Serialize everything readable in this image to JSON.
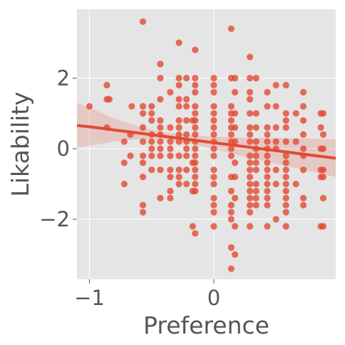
{
  "chart_data": {
    "type": "scatter",
    "title": "",
    "xlabel": "Preference",
    "ylabel": "Likability",
    "xlim": [
      -1.1,
      0.98
    ],
    "ylim": [
      -3.7,
      3.95
    ],
    "x_ticks": [
      -1,
      0
    ],
    "x_tick_labels": [
      "−1",
      "0"
    ],
    "y_ticks": [
      -2,
      0,
      2
    ],
    "y_tick_labels": [
      "−2",
      "0",
      "2"
    ],
    "grid": true,
    "style": "ggplot",
    "colors": {
      "background": "#e5e5e5",
      "grid": "#ffffff",
      "points": "#e24a33",
      "regression_line": "#e24a33",
      "confidence_band": "#e24a33",
      "tick_and_label_text": "#555555"
    },
    "points": [
      {
        "x": -1.0,
        "y": 1.2
      },
      {
        "x": -0.86,
        "y": 1.8
      },
      {
        "x": -0.86,
        "y": 1.4
      },
      {
        "x": -0.84,
        "y": 1.4
      },
      {
        "x": -0.86,
        "y": 0.6
      },
      {
        "x": -0.72,
        "y": 0.2
      },
      {
        "x": -0.72,
        "y": -0.4
      },
      {
        "x": -0.72,
        "y": -1.0
      },
      {
        "x": -0.67,
        "y": 0.4
      },
      {
        "x": -0.67,
        "y": -0.2
      },
      {
        "x": -0.66,
        "y": 1.2
      },
      {
        "x": -0.57,
        "y": 3.6
      },
      {
        "x": -0.57,
        "y": 1.2
      },
      {
        "x": -0.57,
        "y": 1.0
      },
      {
        "x": -0.57,
        "y": 0.6
      },
      {
        "x": -0.57,
        "y": 0.2
      },
      {
        "x": -0.57,
        "y": -0.2
      },
      {
        "x": -0.57,
        "y": -0.4
      },
      {
        "x": -0.57,
        "y": -0.8
      },
      {
        "x": -0.57,
        "y": -1.6
      },
      {
        "x": -0.57,
        "y": -1.8
      },
      {
        "x": -0.5,
        "y": 1.2
      },
      {
        "x": -0.5,
        "y": 1.0
      },
      {
        "x": -0.5,
        "y": 0.8
      },
      {
        "x": -0.5,
        "y": 0.4
      },
      {
        "x": -0.5,
        "y": 0.2
      },
      {
        "x": -0.5,
        "y": 0.0
      },
      {
        "x": -0.5,
        "y": -0.2
      },
      {
        "x": -0.5,
        "y": -0.6
      },
      {
        "x": -0.43,
        "y": 2.4
      },
      {
        "x": -0.43,
        "y": 2.0
      },
      {
        "x": -0.43,
        "y": 1.4
      },
      {
        "x": -0.43,
        "y": 0.8
      },
      {
        "x": -0.43,
        "y": 0.6
      },
      {
        "x": -0.43,
        "y": 0.4
      },
      {
        "x": -0.43,
        "y": 0.2
      },
      {
        "x": -0.43,
        "y": 0.0
      },
      {
        "x": -0.43,
        "y": -0.2
      },
      {
        "x": -0.43,
        "y": -0.6
      },
      {
        "x": -0.43,
        "y": -1.4
      },
      {
        "x": -0.35,
        "y": 1.6
      },
      {
        "x": -0.35,
        "y": 0.6
      },
      {
        "x": -0.35,
        "y": 0.2
      },
      {
        "x": -0.35,
        "y": 0.0
      },
      {
        "x": -0.35,
        "y": -0.2
      },
      {
        "x": -0.35,
        "y": -0.6
      },
      {
        "x": -0.35,
        "y": -0.8
      },
      {
        "x": -0.35,
        "y": -1.2
      },
      {
        "x": -0.35,
        "y": -1.4
      },
      {
        "x": -0.28,
        "y": 3.0
      },
      {
        "x": -0.28,
        "y": 2.0
      },
      {
        "x": -0.28,
        "y": 1.8
      },
      {
        "x": -0.28,
        "y": 1.4
      },
      {
        "x": -0.28,
        "y": 1.2
      },
      {
        "x": -0.28,
        "y": 0.8
      },
      {
        "x": -0.28,
        "y": 0.6
      },
      {
        "x": -0.28,
        "y": 0.4
      },
      {
        "x": -0.28,
        "y": 0.2
      },
      {
        "x": -0.28,
        "y": -0.2
      },
      {
        "x": -0.28,
        "y": -0.6
      },
      {
        "x": -0.28,
        "y": -0.8
      },
      {
        "x": -0.28,
        "y": -1.0
      },
      {
        "x": -0.22,
        "y": 2.0
      },
      {
        "x": -0.22,
        "y": 1.4
      },
      {
        "x": -0.22,
        "y": 1.2
      },
      {
        "x": -0.22,
        "y": 0.8
      },
      {
        "x": -0.22,
        "y": 0.4
      },
      {
        "x": -0.22,
        "y": 0.2
      },
      {
        "x": -0.22,
        "y": 0.0
      },
      {
        "x": -0.22,
        "y": -0.2
      },
      {
        "x": -0.22,
        "y": -0.6
      },
      {
        "x": -0.22,
        "y": -1.0
      },
      {
        "x": -0.15,
        "y": 2.8
      },
      {
        "x": -0.15,
        "y": 2.0
      },
      {
        "x": -0.15,
        "y": 1.8
      },
      {
        "x": -0.15,
        "y": 1.6
      },
      {
        "x": -0.15,
        "y": 1.2
      },
      {
        "x": -0.15,
        "y": 1.0
      },
      {
        "x": -0.15,
        "y": 0.8
      },
      {
        "x": -0.15,
        "y": 0.6
      },
      {
        "x": -0.15,
        "y": 0.4
      },
      {
        "x": -0.15,
        "y": 0.2
      },
      {
        "x": -0.15,
        "y": 0.0
      },
      {
        "x": -0.15,
        "y": -0.2
      },
      {
        "x": -0.15,
        "y": -0.4
      },
      {
        "x": -0.15,
        "y": -0.6
      },
      {
        "x": -0.15,
        "y": -0.8
      },
      {
        "x": -0.15,
        "y": -1.0
      },
      {
        "x": -0.15,
        "y": -1.2
      },
      {
        "x": -0.15,
        "y": -2.4
      },
      {
        "x": -0.17,
        "y": 0.8
      },
      {
        "x": -0.17,
        "y": -0.4
      },
      {
        "x": -0.17,
        "y": -1.2
      },
      {
        "x": -0.17,
        "y": -2.2
      },
      {
        "x": 0.0,
        "y": 2.0
      },
      {
        "x": 0.0,
        "y": 1.8
      },
      {
        "x": 0.0,
        "y": 1.6
      },
      {
        "x": 0.0,
        "y": 1.2
      },
      {
        "x": 0.0,
        "y": 1.0
      },
      {
        "x": 0.0,
        "y": 0.8
      },
      {
        "x": 0.0,
        "y": 0.6
      },
      {
        "x": 0.0,
        "y": 0.4
      },
      {
        "x": 0.0,
        "y": 0.2
      },
      {
        "x": 0.0,
        "y": 0.0
      },
      {
        "x": 0.0,
        "y": -0.2
      },
      {
        "x": 0.0,
        "y": -0.6
      },
      {
        "x": 0.0,
        "y": -0.8
      },
      {
        "x": 0.0,
        "y": -1.0
      },
      {
        "x": 0.0,
        "y": -1.4
      },
      {
        "x": 0.0,
        "y": -1.6
      },
      {
        "x": 0.0,
        "y": -1.8
      },
      {
        "x": 0.0,
        "y": -2.2
      },
      {
        "x": 0.14,
        "y": 3.4
      },
      {
        "x": 0.14,
        "y": 2.0
      },
      {
        "x": 0.14,
        "y": 1.2
      },
      {
        "x": 0.14,
        "y": 1.0
      },
      {
        "x": 0.14,
        "y": 0.8
      },
      {
        "x": 0.14,
        "y": 0.6
      },
      {
        "x": 0.14,
        "y": 0.4
      },
      {
        "x": 0.14,
        "y": 0.2
      },
      {
        "x": 0.14,
        "y": 0.0
      },
      {
        "x": 0.14,
        "y": -0.2
      },
      {
        "x": 0.14,
        "y": -0.8
      },
      {
        "x": 0.14,
        "y": -1.2
      },
      {
        "x": 0.14,
        "y": -1.6
      },
      {
        "x": 0.14,
        "y": -1.8
      },
      {
        "x": 0.14,
        "y": -2.0
      },
      {
        "x": 0.14,
        "y": -2.8
      },
      {
        "x": 0.14,
        "y": -3.4
      },
      {
        "x": 0.17,
        "y": 2.0
      },
      {
        "x": 0.17,
        "y": 1.6
      },
      {
        "x": 0.17,
        "y": 1.0
      },
      {
        "x": 0.17,
        "y": 0.6
      },
      {
        "x": 0.17,
        "y": 0.2
      },
      {
        "x": 0.17,
        "y": -0.4
      },
      {
        "x": 0.17,
        "y": -0.8
      },
      {
        "x": 0.17,
        "y": -1.4
      },
      {
        "x": 0.17,
        "y": -2.2
      },
      {
        "x": 0.17,
        "y": -3.0
      },
      {
        "x": 0.29,
        "y": 2.6
      },
      {
        "x": 0.29,
        "y": 2.0
      },
      {
        "x": 0.29,
        "y": 1.6
      },
      {
        "x": 0.29,
        "y": 1.4
      },
      {
        "x": 0.29,
        "y": 1.0
      },
      {
        "x": 0.29,
        "y": 0.6
      },
      {
        "x": 0.29,
        "y": 0.4
      },
      {
        "x": 0.29,
        "y": 0.2
      },
      {
        "x": 0.29,
        "y": -0.2
      },
      {
        "x": 0.29,
        "y": -0.4
      },
      {
        "x": 0.29,
        "y": -0.6
      },
      {
        "x": 0.29,
        "y": -0.8
      },
      {
        "x": 0.29,
        "y": -1.0
      },
      {
        "x": 0.29,
        "y": -1.2
      },
      {
        "x": 0.29,
        "y": -1.4
      },
      {
        "x": 0.29,
        "y": -1.6
      },
      {
        "x": 0.29,
        "y": -1.8
      },
      {
        "x": 0.29,
        "y": -2.2
      },
      {
        "x": 0.34,
        "y": 2.0
      },
      {
        "x": 0.34,
        "y": 1.0
      },
      {
        "x": 0.34,
        "y": 0.6
      },
      {
        "x": 0.34,
        "y": 0.2
      },
      {
        "x": 0.34,
        "y": 0.0
      },
      {
        "x": 0.34,
        "y": -0.2
      },
      {
        "x": 0.34,
        "y": -0.4
      },
      {
        "x": 0.34,
        "y": -0.6
      },
      {
        "x": 0.34,
        "y": -1.0
      },
      {
        "x": 0.34,
        "y": -1.2
      },
      {
        "x": 0.34,
        "y": -1.4
      },
      {
        "x": 0.34,
        "y": -1.6
      },
      {
        "x": 0.43,
        "y": 1.6
      },
      {
        "x": 0.43,
        "y": 1.2
      },
      {
        "x": 0.43,
        "y": 0.6
      },
      {
        "x": 0.43,
        "y": 0.4
      },
      {
        "x": 0.43,
        "y": 0.2
      },
      {
        "x": 0.43,
        "y": 0.0
      },
      {
        "x": 0.43,
        "y": -0.2
      },
      {
        "x": 0.43,
        "y": -0.4
      },
      {
        "x": 0.43,
        "y": -0.6
      },
      {
        "x": 0.43,
        "y": -0.8
      },
      {
        "x": 0.43,
        "y": -1.0
      },
      {
        "x": 0.43,
        "y": -1.2
      },
      {
        "x": 0.43,
        "y": -1.4
      },
      {
        "x": 0.43,
        "y": -1.6
      },
      {
        "x": 0.43,
        "y": -2.2
      },
      {
        "x": 0.5,
        "y": 1.8
      },
      {
        "x": 0.5,
        "y": 1.2
      },
      {
        "x": 0.5,
        "y": 0.6
      },
      {
        "x": 0.5,
        "y": 0.2
      },
      {
        "x": 0.5,
        "y": 0.0
      },
      {
        "x": 0.5,
        "y": -0.6
      },
      {
        "x": 0.5,
        "y": -1.0
      },
      {
        "x": 0.5,
        "y": -2.0
      },
      {
        "x": 0.58,
        "y": 1.8
      },
      {
        "x": 0.58,
        "y": 1.0
      },
      {
        "x": 0.58,
        "y": 0.8
      },
      {
        "x": 0.58,
        "y": 0.6
      },
      {
        "x": 0.58,
        "y": 0.2
      },
      {
        "x": 0.58,
        "y": -0.2
      },
      {
        "x": 0.58,
        "y": -0.4
      },
      {
        "x": 0.58,
        "y": -0.6
      },
      {
        "x": 0.58,
        "y": -0.8
      },
      {
        "x": 0.58,
        "y": -1.0
      },
      {
        "x": 0.58,
        "y": -1.2
      },
      {
        "x": 0.58,
        "y": -1.4
      },
      {
        "x": 0.58,
        "y": -1.6
      },
      {
        "x": 0.58,
        "y": -1.8
      },
      {
        "x": 0.58,
        "y": -2.2
      },
      {
        "x": 0.66,
        "y": 1.0
      },
      {
        "x": 0.66,
        "y": 0.2
      },
      {
        "x": 0.66,
        "y": -1.0
      },
      {
        "x": 0.72,
        "y": 1.6
      },
      {
        "x": 0.72,
        "y": 1.2
      },
      {
        "x": 0.72,
        "y": 0.8
      },
      {
        "x": 0.72,
        "y": 0.4
      },
      {
        "x": 0.72,
        "y": 0.0
      },
      {
        "x": 0.72,
        "y": -0.2
      },
      {
        "x": 0.72,
        "y": -0.6
      },
      {
        "x": 0.72,
        "y": -1.4
      },
      {
        "x": 0.72,
        "y": -1.6
      },
      {
        "x": 0.86,
        "y": 1.0
      },
      {
        "x": 0.86,
        "y": 0.6
      },
      {
        "x": 0.86,
        "y": 0.0
      },
      {
        "x": 0.86,
        "y": -0.6
      },
      {
        "x": 0.86,
        "y": -0.8
      },
      {
        "x": 0.86,
        "y": -2.2
      },
      {
        "x": 0.88,
        "y": 1.0
      },
      {
        "x": 0.88,
        "y": 0.4
      },
      {
        "x": 0.88,
        "y": 0.0
      },
      {
        "x": 0.88,
        "y": -0.6
      },
      {
        "x": 0.88,
        "y": -0.8
      },
      {
        "x": 0.88,
        "y": -1.4
      },
      {
        "x": 0.88,
        "y": -2.2
      }
    ],
    "regression": {
      "x": [
        -1.1,
        -0.95,
        -0.8,
        -0.6,
        -0.4,
        -0.2,
        0.0,
        0.2,
        0.4,
        0.6,
        0.8,
        0.98
      ],
      "y": [
        0.66,
        0.6,
        0.53,
        0.44,
        0.35,
        0.26,
        0.17,
        0.08,
        -0.01,
        -0.1,
        -0.19,
        -0.27
      ],
      "ci_lower": [
        0.03,
        0.12,
        0.2,
        0.27,
        0.25,
        0.15,
        0.0,
        -0.18,
        -0.35,
        -0.5,
        -0.66,
        -0.8
      ],
      "ci_upper": [
        1.3,
        1.09,
        0.86,
        0.62,
        0.46,
        0.38,
        0.34,
        0.32,
        0.3,
        0.3,
        0.28,
        0.26
      ]
    }
  }
}
